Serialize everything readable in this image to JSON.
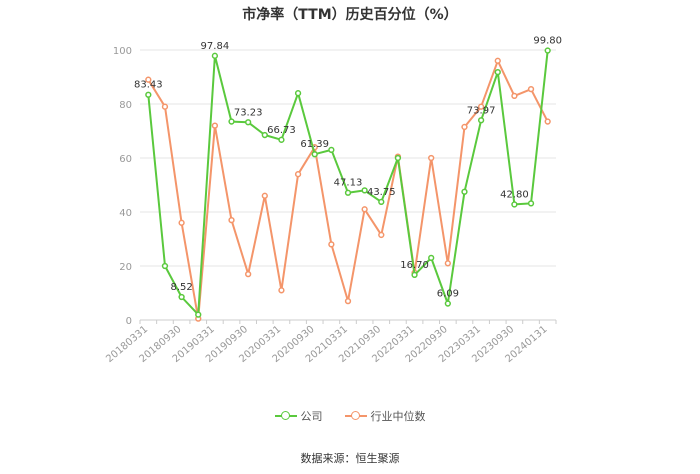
{
  "chart_data": {
    "type": "line",
    "title": "市净率（TTM）历史百分位（%）",
    "ylim": [
      0,
      100
    ],
    "yticks": [
      0,
      20,
      40,
      60,
      80,
      100
    ],
    "grid": true,
    "legend_position": "bottom",
    "x": [
      "20180331",
      "20180630",
      "20180930",
      "20181231",
      "20190331",
      "20190630",
      "20190930",
      "20191231",
      "20200331",
      "20200630",
      "20200930",
      "20201231",
      "20210331",
      "20210630",
      "20210930",
      "20211231",
      "20220331",
      "20220630",
      "20220930",
      "20221231",
      "20230331",
      "20230630",
      "20230930",
      "20231231",
      "20240131"
    ],
    "xtick_labels": [
      "20180331",
      "20180930",
      "20190331",
      "20190930",
      "20200331",
      "20200930",
      "20210331",
      "20210930",
      "20220331",
      "20220930",
      "20230331",
      "20230930",
      "20240131"
    ],
    "series": [
      {
        "name": "公司",
        "color": "#5ac93d",
        "values": [
          83.43,
          20.0,
          8.52,
          2.0,
          97.84,
          73.5,
          73.23,
          68.5,
          66.73,
          84.0,
          61.39,
          63.0,
          47.13,
          48.0,
          43.75,
          60.0,
          16.7,
          23.0,
          6.09,
          47.5,
          73.97,
          91.8,
          42.8,
          43.2,
          99.8
        ],
        "labels": {
          "0": "83.43",
          "2": "8.52",
          "4": "97.84",
          "6": "73.23",
          "8": "66.73",
          "10": "61.39",
          "12": "47.13",
          "14": "43.75",
          "16": "16.70",
          "18": "6.09",
          "20": "73.97",
          "22": "42.80",
          "24": "99.80"
        }
      },
      {
        "name": "行业中位数",
        "color": "#f4956a",
        "values": [
          89.0,
          79.0,
          36.0,
          0.5,
          72.0,
          37.0,
          17.0,
          46.0,
          11.0,
          54.0,
          64.0,
          28.0,
          7.0,
          41.0,
          31.5,
          60.5,
          17.5,
          60.0,
          21.0,
          71.5,
          79.0,
          96.0,
          83.0,
          85.5,
          73.5
        ]
      }
    ]
  },
  "legend": [
    {
      "label": "公司",
      "color": "#5ac93d"
    },
    {
      "label": "行业中位数",
      "color": "#f4956a"
    }
  ],
  "source": "数据来源：恒生聚源"
}
